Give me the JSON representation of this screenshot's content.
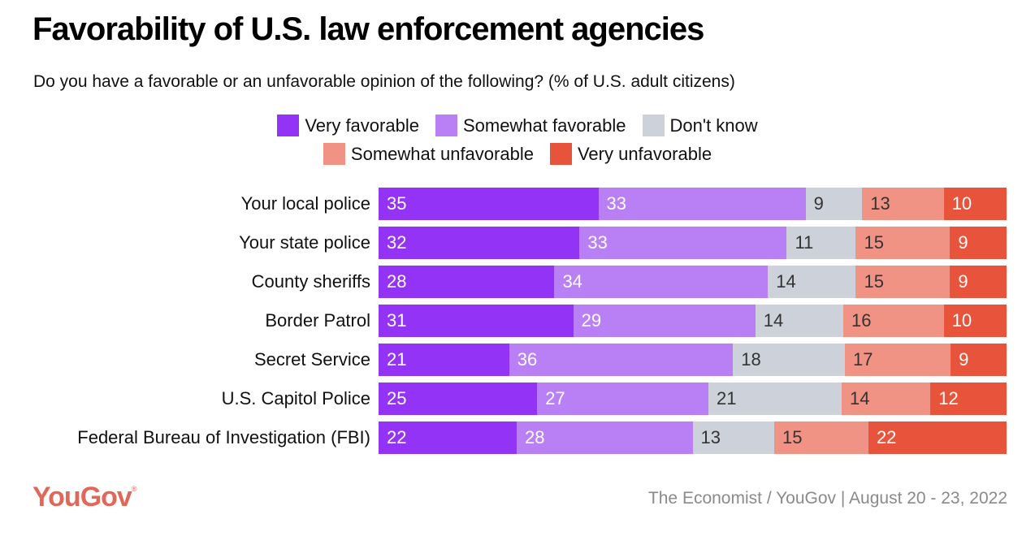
{
  "chart_data": {
    "type": "bar",
    "orientation": "horizontal",
    "stacked": true,
    "normalized": true,
    "title": "Favorability of U.S. law enforcement agencies",
    "subtitle": "Do you have a favorable or an unfavorable opinion of the following? (% of U.S. adult citizens)",
    "xlabel": "",
    "ylabel": "",
    "legend_position": "top-center",
    "grid": false,
    "categories": [
      "Your local police",
      "Your state police",
      "County sheriffs",
      "Border Patrol",
      "Secret Service",
      "U.S. Capitol Police",
      "Federal Bureau of Investigation (FBI)"
    ],
    "series": [
      {
        "name": "Very favorable",
        "color": "#9333f5",
        "label_color": "#ffffff",
        "values": [
          35,
          32,
          28,
          31,
          21,
          25,
          22
        ]
      },
      {
        "name": "Somewhat favorable",
        "color": "#b980f6",
        "label_color": "#ffffff",
        "values": [
          33,
          33,
          34,
          29,
          36,
          27,
          28
        ]
      },
      {
        "name": "Don't know",
        "color": "#cdd1d9",
        "label_color": "#333333",
        "values": [
          9,
          11,
          14,
          14,
          18,
          21,
          13
        ]
      },
      {
        "name": "Somewhat unfavorable",
        "color": "#f09385",
        "label_color": "#333333",
        "values": [
          13,
          15,
          15,
          16,
          17,
          14,
          15
        ]
      },
      {
        "name": "Very unfavorable",
        "color": "#e8533b",
        "label_color": "#ffffff",
        "values": [
          10,
          9,
          9,
          10,
          9,
          12,
          22
        ]
      }
    ]
  },
  "footer": {
    "logo": "YouGov",
    "logo_mark": "®",
    "source": "The Economist / YouGov | August 20 - 23, 2022"
  },
  "colors": {
    "brand": "#e0685a"
  }
}
